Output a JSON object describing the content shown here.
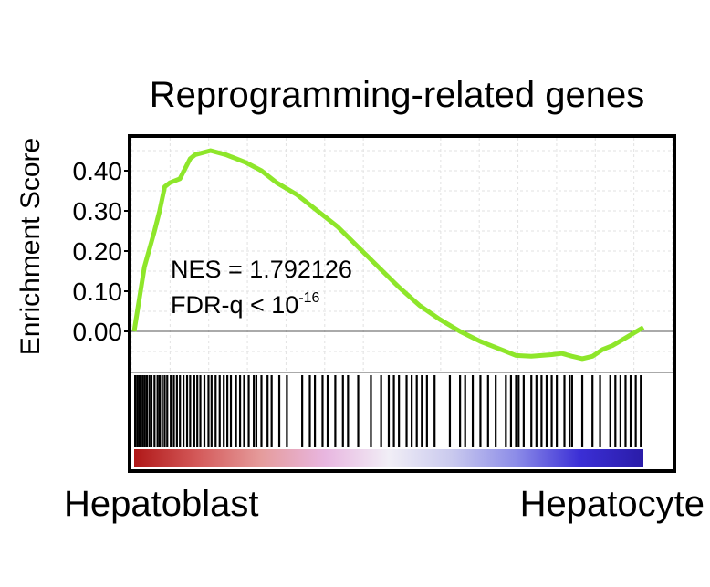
{
  "chart_data": {
    "type": "line",
    "title": "Reprogramming-related genes",
    "xlabel": "",
    "ylabel": "Enrichment Score",
    "ylim": [
      -0.08,
      0.46
    ],
    "y_ticks": [
      "0.40",
      "0.30",
      "0.20",
      "0.10",
      "0.00"
    ],
    "y_tick_values": [
      0.4,
      0.3,
      0.2,
      0.1,
      0.0
    ],
    "grid": true,
    "left_phenotype": "Hepatoblast",
    "right_phenotype": "Hepatocyte",
    "annotations": {
      "nes": "NES = 1.792126",
      "fdr_base": "FDR-q < 10",
      "fdr_exp": "-16"
    },
    "line_color": "#8ee62a",
    "series": [
      {
        "x": [
          0,
          0.01,
          0.02,
          0.04,
          0.05,
          0.06,
          0.07,
          0.09,
          0.11,
          0.12,
          0.15,
          0.18,
          0.22,
          0.25,
          0.28,
          0.32,
          0.36,
          0.4,
          0.44,
          0.48,
          0.52,
          0.56,
          0.6,
          0.64,
          0.68,
          0.72,
          0.75,
          0.78,
          0.8,
          0.82,
          0.84,
          0.86,
          0.88,
          0.9,
          0.92,
          0.94,
          0.96,
          0.98,
          1.0
        ],
        "y": [
          0.0,
          0.08,
          0.16,
          0.25,
          0.3,
          0.36,
          0.37,
          0.38,
          0.43,
          0.44,
          0.45,
          0.44,
          0.42,
          0.4,
          0.37,
          0.34,
          0.3,
          0.26,
          0.21,
          0.16,
          0.11,
          0.065,
          0.03,
          0.0,
          -0.025,
          -0.045,
          -0.06,
          -0.062,
          -0.06,
          -0.058,
          -0.055,
          -0.062,
          -0.068,
          -0.062,
          -0.045,
          -0.035,
          -0.02,
          -0.005,
          0.01
        ]
      }
    ],
    "hit_positions": [
      0.002,
      0.006,
      0.01,
      0.013,
      0.017,
      0.021,
      0.025,
      0.03,
      0.034,
      0.04,
      0.046,
      0.05,
      0.055,
      0.06,
      0.065,
      0.072,
      0.078,
      0.084,
      0.09,
      0.097,
      0.104,
      0.11,
      0.118,
      0.124,
      0.13,
      0.138,
      0.146,
      0.152,
      0.16,
      0.168,
      0.176,
      0.183,
      0.19,
      0.2,
      0.208,
      0.216,
      0.225,
      0.235,
      0.24,
      0.25,
      0.262,
      0.27,
      0.285,
      0.3,
      0.33,
      0.345,
      0.355,
      0.37,
      0.38,
      0.395,
      0.41,
      0.42,
      0.44,
      0.465,
      0.485,
      0.5,
      0.51,
      0.52,
      0.535,
      0.545,
      0.555,
      0.565,
      0.575,
      0.59,
      0.62,
      0.64,
      0.65,
      0.665,
      0.68,
      0.695,
      0.71,
      0.73,
      0.74,
      0.75,
      0.755,
      0.765,
      0.78,
      0.79,
      0.8,
      0.81,
      0.82,
      0.83,
      0.845,
      0.855,
      0.86,
      0.88,
      0.9,
      0.915,
      0.935,
      0.945,
      0.955,
      0.965,
      0.975,
      0.985,
      0.995
    ],
    "gradient_colors": [
      "#b01818",
      "#d45a5a",
      "#e59c9c",
      "#e8b6e0",
      "#f1eef6",
      "#c9c9ee",
      "#8c8ce8",
      "#3b2fd6",
      "#2a1ca8"
    ]
  }
}
